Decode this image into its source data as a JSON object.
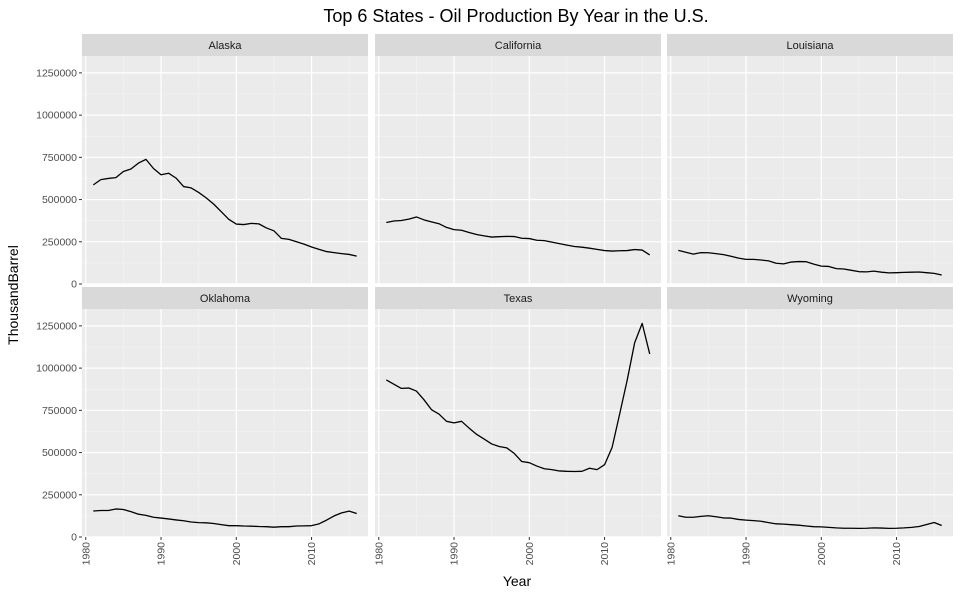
{
  "chart_data": {
    "type": "line",
    "title": "Top 6 States - Oil Production By Year in the U.S.",
    "xlabel": "Year",
    "ylabel": "ThousandBarrel",
    "xlim": [
      1979.5,
      2017.5
    ],
    "ylim": [
      0,
      1350000
    ],
    "x_ticks": [
      1980,
      1990,
      2000,
      2010
    ],
    "y_ticks": [
      0,
      250000,
      500000,
      750000,
      1000000,
      1250000
    ],
    "y_tick_labels": [
      "0",
      "250000",
      "500000",
      "750000",
      "1000000",
      "1250000"
    ],
    "grid": true,
    "line_color": "#000000",
    "panel_background": "#ebebeb",
    "strip_background": "#d9d9d9",
    "x": [
      1981,
      1982,
      1983,
      1984,
      1985,
      1986,
      1987,
      1988,
      1989,
      1990,
      1991,
      1992,
      1993,
      1994,
      1995,
      1996,
      1997,
      1998,
      1999,
      2000,
      2001,
      2002,
      2003,
      2004,
      2005,
      2006,
      2007,
      2008,
      2009,
      2010,
      2011,
      2012,
      2013,
      2014,
      2015,
      2016
    ],
    "panels": [
      {
        "name": "Alaska",
        "values": [
          587000,
          618000,
          625000,
          630000,
          666000,
          681000,
          716000,
          738000,
          684000,
          647000,
          656000,
          627000,
          577000,
          569000,
          542000,
          510000,
          473000,
          428000,
          383000,
          355000,
          352000,
          359000,
          356000,
          332000,
          315000,
          270000,
          264000,
          250000,
          236000,
          219000,
          205000,
          192000,
          186000,
          180000,
          175000,
          165000
        ]
      },
      {
        "name": "California",
        "values": [
          364000,
          373000,
          376000,
          384000,
          397000,
          380000,
          368000,
          357000,
          335000,
          322000,
          318000,
          305000,
          293000,
          285000,
          278000,
          280000,
          282000,
          281000,
          271000,
          269000,
          259000,
          257000,
          248000,
          239000,
          230000,
          222000,
          218000,
          212000,
          205000,
          198000,
          195000,
          197000,
          198000,
          204000,
          201000,
          172000
        ]
      },
      {
        "name": "Louisiana",
        "values": [
          199000,
          188000,
          177000,
          186000,
          185000,
          180000,
          174000,
          164000,
          153000,
          146000,
          146000,
          142000,
          137000,
          123000,
          119000,
          130000,
          133000,
          132000,
          118000,
          106000,
          104000,
          91000,
          89000,
          81000,
          73000,
          72000,
          76000,
          70000,
          66000,
          67000,
          69000,
          70000,
          71000,
          67000,
          63000,
          53000
        ]
      },
      {
        "name": "Oklahoma",
        "values": [
          154000,
          157000,
          157000,
          166000,
          163000,
          150000,
          135000,
          128000,
          117000,
          112000,
          107000,
          101000,
          96000,
          89000,
          85000,
          84000,
          80000,
          73000,
          67000,
          67000,
          65000,
          64000,
          62000,
          61000,
          58000,
          61000,
          61000,
          65000,
          66000,
          67000,
          78000,
          100000,
          125000,
          143000,
          153000,
          139000
        ]
      },
      {
        "name": "Texas",
        "values": [
          930000,
          905000,
          880000,
          882000,
          864000,
          813000,
          754000,
          728000,
          685000,
          676000,
          685000,
          645000,
          608000,
          580000,
          551000,
          536000,
          528000,
          495000,
          447000,
          440000,
          420000,
          404000,
          399000,
          391000,
          389000,
          388000,
          389000,
          407000,
          399000,
          428000,
          530000,
          727000,
          927000,
          1150000,
          1265000,
          1084000
        ]
      },
      {
        "name": "Wyoming",
        "values": [
          126000,
          117000,
          117000,
          122000,
          126000,
          120000,
          113000,
          112000,
          104000,
          100000,
          97000,
          93000,
          85000,
          78000,
          76000,
          73000,
          70000,
          65000,
          61000,
          60000,
          57000,
          54000,
          52000,
          52000,
          51000,
          52000,
          54000,
          53000,
          51000,
          52000,
          54000,
          57000,
          62000,
          74000,
          86000,
          68000
        ]
      }
    ]
  }
}
